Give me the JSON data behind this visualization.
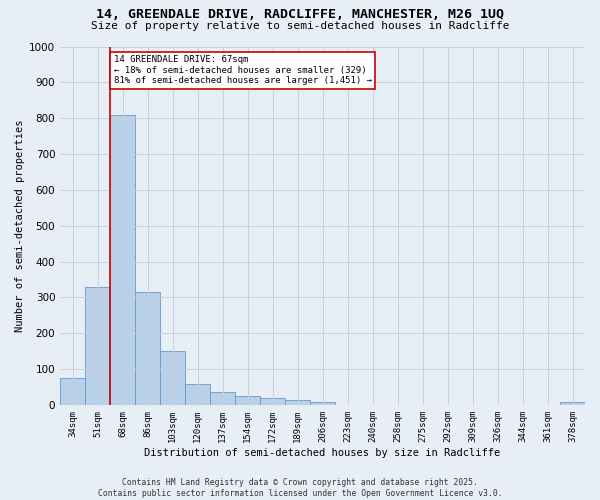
{
  "title_line1": "14, GREENDALE DRIVE, RADCLIFFE, MANCHESTER, M26 1UQ",
  "title_line2": "Size of property relative to semi-detached houses in Radcliffe",
  "xlabel": "Distribution of semi-detached houses by size in Radcliffe",
  "ylabel": "Number of semi-detached properties",
  "bar_labels": [
    "34sqm",
    "51sqm",
    "68sqm",
    "86sqm",
    "103sqm",
    "120sqm",
    "137sqm",
    "154sqm",
    "172sqm",
    "189sqm",
    "206sqm",
    "223sqm",
    "240sqm",
    "258sqm",
    "275sqm",
    "292sqm",
    "309sqm",
    "326sqm",
    "344sqm",
    "361sqm",
    "378sqm"
  ],
  "bar_values": [
    75,
    330,
    810,
    315,
    150,
    57,
    35,
    25,
    20,
    13,
    7,
    0,
    0,
    0,
    0,
    0,
    0,
    0,
    0,
    0,
    8
  ],
  "bar_color": "#b8d0e8",
  "bar_edge_color": "#6699cc",
  "highlight_bar_index": 2,
  "red_line_color": "#cc0000",
  "annotation_text": "14 GREENDALE DRIVE: 67sqm\n← 18% of semi-detached houses are smaller (329)\n81% of semi-detached houses are larger (1,451) →",
  "annotation_box_color": "#ffffff",
  "annotation_border_color": "#cc0000",
  "ylim": [
    0,
    1000
  ],
  "yticks": [
    0,
    100,
    200,
    300,
    400,
    500,
    600,
    700,
    800,
    900,
    1000
  ],
  "background_color": "#e8eef6",
  "plot_background_color": "#e8eef6",
  "grid_color": "#c8d0dc",
  "footnote": "Contains HM Land Registry data © Crown copyright and database right 2025.\nContains public sector information licensed under the Open Government Licence v3.0."
}
